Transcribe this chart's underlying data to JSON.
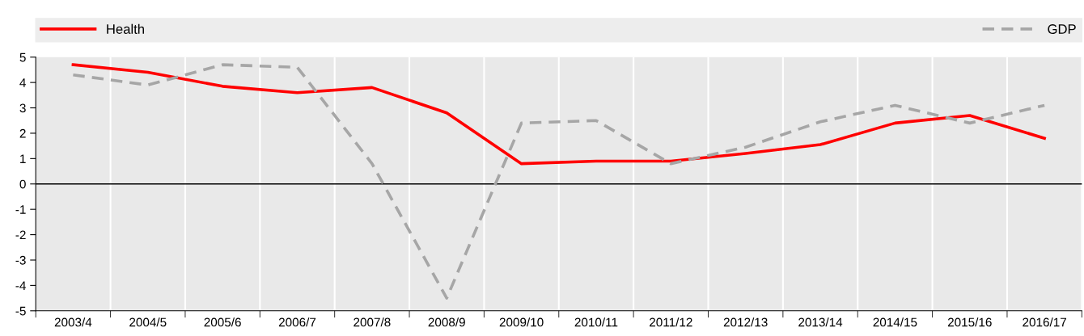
{
  "chart_data": {
    "type": "line",
    "categories": [
      "2003/4",
      "2004/5",
      "2005/6",
      "2006/7",
      "2007/8",
      "2008/9",
      "2009/10",
      "2010/11",
      "2011/12",
      "2012/13",
      "2013/14",
      "2014/15",
      "2015/16",
      "2016/17"
    ],
    "series": [
      {
        "name": "Health",
        "color": "#ff0000",
        "line_style": "solid",
        "values": [
          4.7,
          4.4,
          3.85,
          3.6,
          3.8,
          2.8,
          0.8,
          0.9,
          0.9,
          1.2,
          1.55,
          2.4,
          2.7,
          1.8
        ]
      },
      {
        "name": "GDP",
        "color": "#a6a6a6",
        "line_style": "dashed",
        "values": [
          4.3,
          3.9,
          4.7,
          4.6,
          0.8,
          -4.5,
          2.4,
          2.5,
          0.8,
          1.45,
          2.45,
          3.1,
          2.4,
          3.1
        ]
      }
    ],
    "ylim": [
      -5,
      5
    ],
    "yticks": [
      -5,
      -4,
      -3,
      -2,
      -1,
      0,
      1,
      2,
      3,
      4,
      5
    ],
    "grid": "x",
    "legend": "top",
    "marker": "none"
  }
}
